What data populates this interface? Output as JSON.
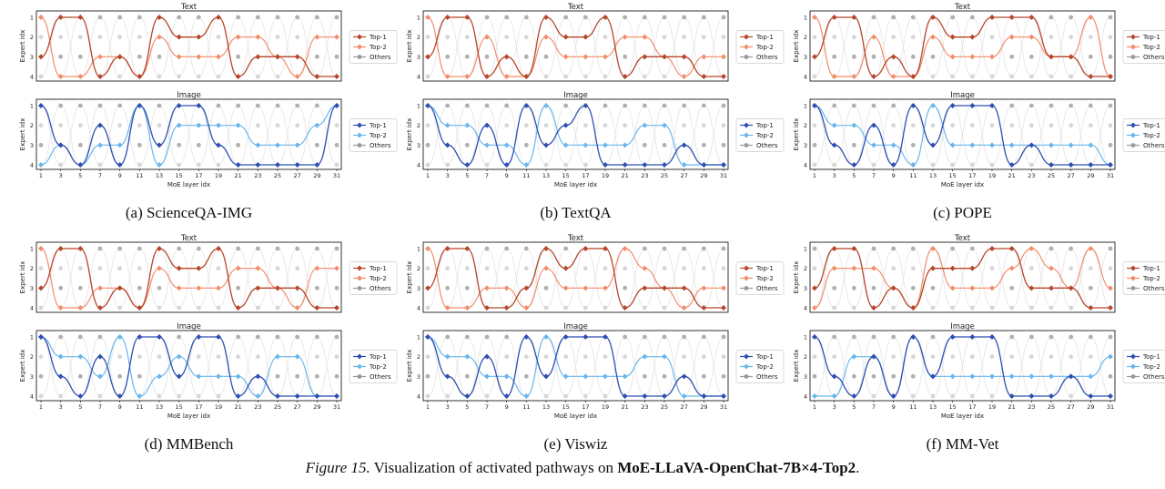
{
  "figure": {
    "label": "Figure 15.",
    "caption_text": "Visualization of activated pathways on",
    "model_name": "MoE-LLaVA-OpenChat-7B×4-Top2",
    "caption_end": "."
  },
  "styles": {
    "text_top1": "#b5462a",
    "text_top2": "#f28d6a",
    "image_top1": "#2f4fb0",
    "image_top2": "#6ab6ec",
    "others": "#999999",
    "faint": "#e4e4e4"
  },
  "chart_data": [
    {
      "type": "line",
      "caption": "(a) ScienceQA-IMG",
      "xlabel": "MoE layer idx",
      "ylabel": "Expert idx",
      "xticks": [
        1,
        3,
        5,
        7,
        9,
        11,
        13,
        15,
        17,
        19,
        21,
        23,
        25,
        27,
        29,
        31
      ],
      "yticks": [
        1,
        2,
        3,
        4
      ],
      "legend": [
        "Top-1",
        "Top-2",
        "Others"
      ],
      "panels": [
        {
          "title": "Text",
          "top1": [
            3,
            1,
            1,
            4,
            3,
            4,
            1,
            2,
            2,
            1,
            4,
            3,
            3,
            3,
            4,
            4
          ],
          "top2": [
            1,
            4,
            4,
            3,
            3,
            4,
            2,
            3,
            3,
            3,
            2,
            2,
            3,
            4,
            2,
            2
          ]
        },
        {
          "title": "Image",
          "top1": [
            1,
            3,
            4,
            2,
            4,
            1,
            3,
            1,
            1,
            3,
            4,
            4,
            4,
            4,
            4,
            1
          ],
          "top2": [
            4,
            3,
            4,
            3,
            3,
            1,
            4,
            2,
            2,
            2,
            2,
            3,
            3,
            3,
            2,
            1
          ]
        }
      ]
    },
    {
      "type": "line",
      "caption": "(b) TextQA",
      "xlabel": "MoE layer idx",
      "ylabel": "Expert idx",
      "xticks": [
        1,
        3,
        5,
        7,
        9,
        11,
        13,
        15,
        17,
        19,
        21,
        23,
        25,
        27,
        29,
        31
      ],
      "yticks": [
        1,
        2,
        3,
        4
      ],
      "legend": [
        "Top-1",
        "Top-2",
        "Others"
      ],
      "panels": [
        {
          "title": "Text",
          "top1": [
            3,
            1,
            1,
            4,
            3,
            4,
            1,
            2,
            2,
            1,
            4,
            3,
            3,
            3,
            4,
            4
          ],
          "top2": [
            1,
            4,
            4,
            2,
            4,
            4,
            2,
            3,
            3,
            3,
            2,
            2,
            3,
            4,
            3,
            3
          ]
        },
        {
          "title": "Image",
          "top1": [
            1,
            3,
            4,
            2,
            4,
            1,
            3,
            2,
            1,
            4,
            4,
            4,
            4,
            3,
            4,
            4
          ],
          "top2": [
            1,
            2,
            2,
            3,
            3,
            4,
            1,
            3,
            3,
            3,
            3,
            2,
            2,
            4,
            4,
            4
          ]
        }
      ]
    },
    {
      "type": "line",
      "caption": "(c) POPE",
      "xlabel": "MoE layer idx",
      "ylabel": "Expert idx",
      "xticks": [
        1,
        3,
        5,
        7,
        9,
        11,
        13,
        15,
        17,
        19,
        21,
        23,
        25,
        27,
        29,
        31
      ],
      "yticks": [
        1,
        2,
        3,
        4
      ],
      "legend": [
        "Top-1",
        "Top-2",
        "Others"
      ],
      "panels": [
        {
          "title": "Text",
          "top1": [
            3,
            1,
            1,
            4,
            3,
            4,
            1,
            2,
            2,
            1,
            1,
            1,
            3,
            3,
            4,
            4
          ],
          "top2": [
            1,
            4,
            4,
            2,
            4,
            4,
            2,
            3,
            3,
            3,
            2,
            2,
            3,
            3,
            1,
            4
          ]
        },
        {
          "title": "Image",
          "top1": [
            1,
            3,
            4,
            2,
            4,
            1,
            3,
            1,
            1,
            1,
            4,
            3,
            4,
            4,
            4,
            4
          ],
          "top2": [
            1,
            2,
            2,
            3,
            3,
            4,
            1,
            3,
            3,
            3,
            3,
            3,
            3,
            3,
            3,
            4
          ]
        }
      ]
    },
    {
      "type": "line",
      "caption": "(d) MMBench",
      "xlabel": "MoE layer idx",
      "ylabel": "Expert idx",
      "xticks": [
        1,
        3,
        5,
        7,
        9,
        11,
        13,
        15,
        17,
        19,
        21,
        23,
        25,
        27,
        29,
        31
      ],
      "yticks": [
        1,
        2,
        3,
        4
      ],
      "legend": [
        "Top-1",
        "Top-2",
        "Others"
      ],
      "panels": [
        {
          "title": "Text",
          "top1": [
            3,
            1,
            1,
            4,
            3,
            4,
            1,
            2,
            2,
            1,
            4,
            3,
            3,
            3,
            4,
            4
          ],
          "top2": [
            1,
            4,
            4,
            3,
            3,
            4,
            2,
            3,
            3,
            3,
            2,
            2,
            3,
            4,
            2,
            2
          ]
        },
        {
          "title": "Image",
          "top1": [
            1,
            3,
            4,
            2,
            4,
            1,
            1,
            3,
            1,
            1,
            4,
            3,
            4,
            4,
            4,
            4
          ],
          "top2": [
            1,
            2,
            2,
            3,
            1,
            4,
            3,
            2,
            3,
            3,
            3,
            4,
            2,
            2,
            4,
            4
          ]
        }
      ]
    },
    {
      "type": "line",
      "caption": "(e) Viswiz",
      "xlabel": "MoE layer idx",
      "ylabel": "Expert idx",
      "xticks": [
        1,
        3,
        5,
        7,
        9,
        11,
        13,
        15,
        17,
        19,
        21,
        23,
        25,
        27,
        29,
        31
      ],
      "yticks": [
        1,
        2,
        3,
        4
      ],
      "legend": [
        "Top-1",
        "Top-2",
        "Others"
      ],
      "panels": [
        {
          "title": "Text",
          "top1": [
            3,
            1,
            1,
            4,
            4,
            3,
            1,
            2,
            1,
            1,
            4,
            3,
            3,
            3,
            4,
            4
          ],
          "top2": [
            1,
            4,
            4,
            3,
            3,
            4,
            2,
            3,
            3,
            3,
            1,
            2,
            3,
            4,
            3,
            3
          ]
        },
        {
          "title": "Image",
          "top1": [
            1,
            3,
            4,
            2,
            4,
            1,
            3,
            1,
            1,
            1,
            4,
            4,
            4,
            3,
            4,
            4
          ],
          "top2": [
            1,
            2,
            2,
            3,
            3,
            4,
            1,
            3,
            3,
            3,
            3,
            2,
            2,
            4,
            4,
            4
          ]
        }
      ]
    },
    {
      "type": "line",
      "caption": "(f) MM-Vet",
      "xlabel": "MoE layer idx",
      "ylabel": "Expert idx",
      "xticks": [
        1,
        3,
        5,
        7,
        9,
        11,
        13,
        15,
        17,
        19,
        21,
        23,
        25,
        27,
        29,
        31
      ],
      "yticks": [
        1,
        2,
        3,
        4
      ],
      "legend": [
        "Top-1",
        "Top-2",
        "Others"
      ],
      "panels": [
        {
          "title": "Text",
          "top1": [
            3,
            1,
            1,
            4,
            3,
            4,
            2,
            2,
            2,
            1,
            1,
            3,
            3,
            3,
            4,
            4
          ],
          "top2": [
            4,
            2,
            2,
            2,
            3,
            4,
            1,
            3,
            3,
            3,
            2,
            1,
            2,
            3,
            1,
            3
          ]
        },
        {
          "title": "Image",
          "top1": [
            1,
            3,
            4,
            2,
            4,
            1,
            3,
            1,
            1,
            1,
            4,
            4,
            4,
            3,
            4,
            4
          ],
          "top2": [
            4,
            4,
            2,
            2,
            4,
            1,
            3,
            3,
            3,
            3,
            3,
            3,
            3,
            3,
            3,
            2
          ]
        }
      ]
    }
  ]
}
